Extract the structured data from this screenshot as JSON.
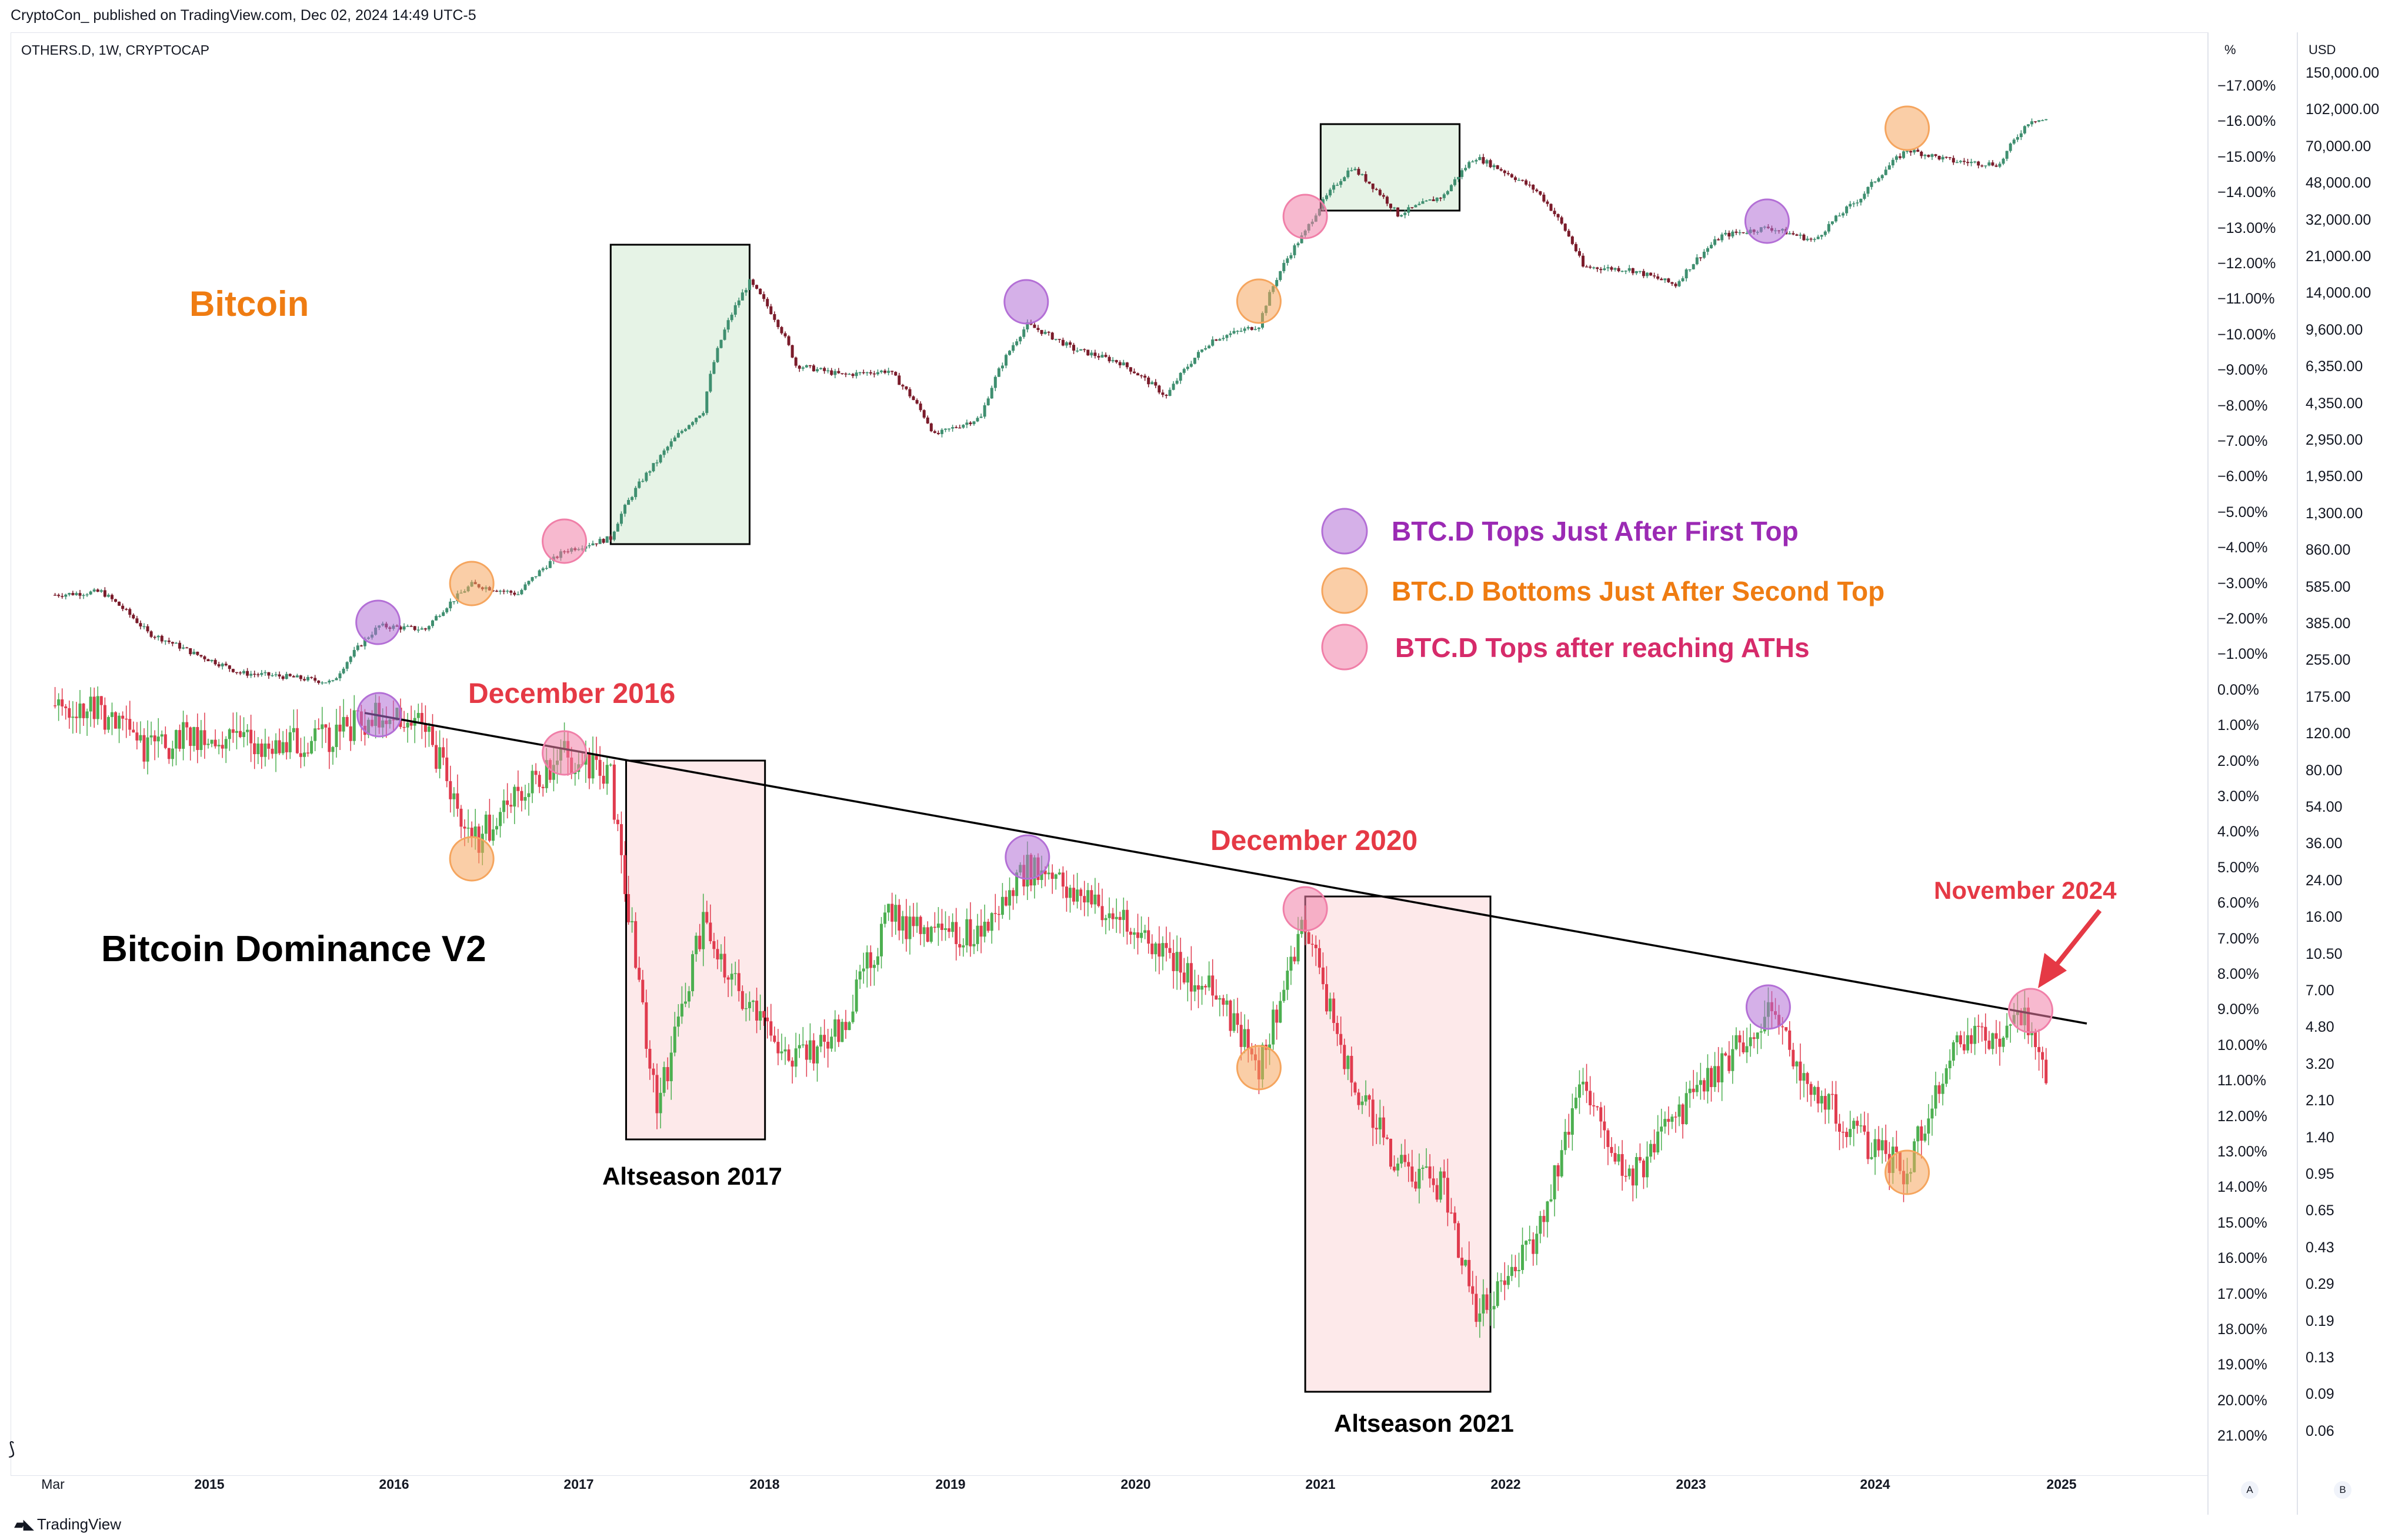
{
  "header": {
    "published": "CryptoCon_ published on TradingView.com, Dec 02, 2024 14:49 UTC-5",
    "symbol": "OTHERS.D, 1W, CRYPTOCAP"
  },
  "footer": {
    "brand": "TradingView"
  },
  "axis_headers": {
    "percent": "%",
    "currency": "USD"
  },
  "axis_buttons": {
    "auto": "A",
    "log": "B"
  },
  "colors": {
    "up": "#4caf50",
    "down": "#e03b4e",
    "btc_up": "#3f8f70",
    "btc_down": "#7a1b2a",
    "purple": "#b36fd6",
    "orange": "#f5a55e",
    "pink": "#f07fa8",
    "green_box": "#e6f3e6",
    "red_box": "#fde9ea",
    "title_orange": "#ef7c12",
    "title_red": "#e53945",
    "legend_purple": "#9b2ab4",
    "legend_pink": "#d62b6a"
  },
  "chart_data": {
    "type": "line",
    "title": "",
    "x_ticks": [
      "Mar",
      "2015",
      "2016",
      "2017",
      "2018",
      "2019",
      "2020",
      "2021",
      "2022",
      "2023",
      "2024",
      "2025"
    ],
    "y_ticks_percent": [
      "−17.00%",
      "−16.00%",
      "−15.00%",
      "−14.00%",
      "−13.00%",
      "−12.00%",
      "−11.00%",
      "−10.00%",
      "−9.00%",
      "−8.00%",
      "−7.00%",
      "−6.00%",
      "−5.00%",
      "−4.00%",
      "−3.00%",
      "−2.00%",
      "−1.00%",
      "0.00%",
      "1.00%",
      "2.00%",
      "3.00%",
      "4.00%",
      "5.00%",
      "6.00%",
      "7.00%",
      "8.00%",
      "9.00%",
      "10.00%",
      "11.00%",
      "12.00%",
      "13.00%",
      "14.00%",
      "15.00%",
      "16.00%",
      "17.00%",
      "18.00%",
      "19.00%",
      "20.00%",
      "21.00%"
    ],
    "y_ticks_usd": [
      "150,000.00",
      "102,000.00",
      "70,000.00",
      "48,000.00",
      "32,000.00",
      "21,000.00",
      "14,000.00",
      "9,600.00",
      "6,350.00",
      "4,350.00",
      "2,950.00",
      "1,950.00",
      "1,300.00",
      "860.00",
      "585.00",
      "385.00",
      "255.00",
      "175.00",
      "120.00",
      "80.00",
      "54.00",
      "36.00",
      "24.00",
      "16.00",
      "10.50",
      "7.00",
      "4.80",
      "3.20",
      "2.10",
      "1.40",
      "0.95",
      "0.65",
      "0.43",
      "0.29",
      "0.19",
      "0.13",
      "0.09",
      "0.06"
    ],
    "series": [
      {
        "name": "Bitcoin",
        "unit": "USD",
        "points": [
          [
            "2014-03",
            600
          ],
          [
            "2014-06",
            620
          ],
          [
            "2014-09",
            400
          ],
          [
            "2014-12",
            320
          ],
          [
            "2015-03",
            260
          ],
          [
            "2015-06",
            250
          ],
          [
            "2015-09",
            235
          ],
          [
            "2015-12",
            430
          ],
          [
            "2016-03",
            415
          ],
          [
            "2016-06",
            670
          ],
          [
            "2016-09",
            605
          ],
          [
            "2016-12",
            960
          ],
          [
            "2017-03",
            1100
          ],
          [
            "2017-06",
            2500
          ],
          [
            "2017-09",
            4300
          ],
          [
            "2017-12",
            17000
          ],
          [
            "2018-03",
            7000
          ],
          [
            "2018-06",
            6300
          ],
          [
            "2018-09",
            6600
          ],
          [
            "2018-12",
            3300
          ],
          [
            "2019-03",
            4000
          ],
          [
            "2019-06",
            10800
          ],
          [
            "2019-09",
            8300
          ],
          [
            "2019-12",
            7200
          ],
          [
            "2020-03",
            5000
          ],
          [
            "2020-06",
            9200
          ],
          [
            "2020-09",
            10700
          ],
          [
            "2020-12",
            29000
          ],
          [
            "2021-03",
            58000
          ],
          [
            "2021-06",
            35000
          ],
          [
            "2021-09",
            43000
          ],
          [
            "2021-11",
            65000
          ],
          [
            "2022-03",
            45000
          ],
          [
            "2022-06",
            20000
          ],
          [
            "2022-09",
            19500
          ],
          [
            "2022-12",
            16500
          ],
          [
            "2023-03",
            28000
          ],
          [
            "2023-06",
            30500
          ],
          [
            "2023-09",
            26500
          ],
          [
            "2023-12",
            42000
          ],
          [
            "2024-03",
            70000
          ],
          [
            "2024-06",
            62000
          ],
          [
            "2024-09",
            60000
          ],
          [
            "2024-11",
            97000
          ],
          [
            "2024-12",
            96000
          ]
        ]
      },
      {
        "name": "Bitcoin Dominance V2",
        "unit": "%",
        "points": [
          [
            "2014-03",
            0.4
          ],
          [
            "2014-06",
            0.6
          ],
          [
            "2014-09",
            1.7
          ],
          [
            "2014-12",
            1.2
          ],
          [
            "2015-03",
            1.4
          ],
          [
            "2015-06",
            1.5
          ],
          [
            "2015-09",
            1.3
          ],
          [
            "2015-12",
            0.6
          ],
          [
            "2016-03",
            1.0
          ],
          [
            "2016-06",
            4.3
          ],
          [
            "2016-09",
            3.0
          ],
          [
            "2016-12",
            1.8
          ],
          [
            "2017-03",
            2.5
          ],
          [
            "2017-06",
            11.8
          ],
          [
            "2017-09",
            6.5
          ],
          [
            "2017-12",
            9.0
          ],
          [
            "2018-03",
            10.4
          ],
          [
            "2018-06",
            9.5
          ],
          [
            "2018-09",
            6.3
          ],
          [
            "2018-12",
            7.0
          ],
          [
            "2019-03",
            6.8
          ],
          [
            "2019-06",
            5.0
          ],
          [
            "2019-09",
            5.6
          ],
          [
            "2019-12",
            6.5
          ],
          [
            "2020-03",
            7.5
          ],
          [
            "2020-06",
            8.5
          ],
          [
            "2020-09",
            10.5
          ],
          [
            "2020-12",
            6.5
          ],
          [
            "2021-03",
            11.0
          ],
          [
            "2021-06",
            13.3
          ],
          [
            "2021-09",
            14.0
          ],
          [
            "2021-11",
            17.5
          ],
          [
            "2022-01",
            16.5
          ],
          [
            "2022-03",
            15.5
          ],
          [
            "2022-06",
            11.0
          ],
          [
            "2022-09",
            13.8
          ],
          [
            "2022-12",
            12.0
          ],
          [
            "2023-03",
            10.6
          ],
          [
            "2023-06",
            9.0
          ],
          [
            "2023-09",
            11.2
          ],
          [
            "2023-12",
            12.6
          ],
          [
            "2024-03",
            13.5
          ],
          [
            "2024-06",
            10.0
          ],
          [
            "2024-09",
            9.7
          ],
          [
            "2024-11",
            9.2
          ],
          [
            "2024-12",
            11.1
          ]
        ]
      }
    ],
    "annotations": {
      "bitcoin_label": "Bitcoin",
      "dominance_label": "Bitcoin Dominance V2",
      "december_2016": "December 2016",
      "december_2020": "December 2020",
      "november_2024": "November 2024",
      "altseason_2017": "Altseason 2017",
      "altseason_2021": "Altseason 2021",
      "legend_purple": "BTC.D Tops Just After First Top",
      "legend_orange": "BTC.D Bottoms Just After Second Top",
      "legend_pink": "BTC.D Tops after reaching ATHs"
    },
    "grid": false,
    "y_scale": "log"
  }
}
